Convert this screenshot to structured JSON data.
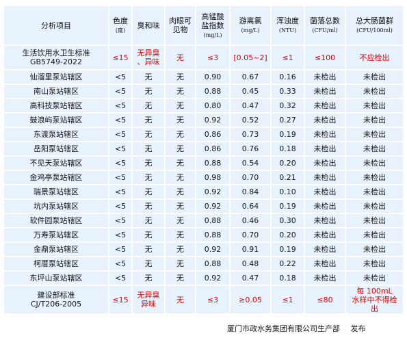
{
  "headers": [
    {
      "lines": [
        "分析项目"
      ]
    },
    {
      "lines": [
        "色度"
      ],
      "sub": "(度)"
    },
    {
      "lines": [
        "臭和味"
      ]
    },
    {
      "lines": [
        "肉眼可",
        "见物"
      ]
    },
    {
      "lines": [
        "高锰酸",
        "盐指数"
      ],
      "sub": "(mg/L)"
    },
    {
      "lines": [
        "游离氯"
      ],
      "sub": "(mg/L)"
    },
    {
      "lines": [
        "浑浊度"
      ],
      "sub": "(NTU)"
    },
    {
      "lines": [
        "菌落总数"
      ],
      "sub": "(CFU/ml)"
    },
    {
      "lines": [
        "总大肠菌群"
      ],
      "sub": "(CFU/100ml)"
    }
  ],
  "standard": {
    "name_lines": [
      "生活饮用水卫生标准",
      "GB5749-2022"
    ],
    "values": [
      [
        "≤15"
      ],
      [
        "无异臭",
        "、异味"
      ],
      [
        "无"
      ],
      [
        "≤3"
      ],
      [
        "[0.05~2]"
      ],
      [
        "≤1"
      ],
      [
        "≤100"
      ],
      [
        "不应检出"
      ]
    ]
  },
  "rows": [
    {
      "name": "仙溜里泵站辖区",
      "values": [
        "<5",
        "无",
        "无",
        "0.90",
        "0.67",
        "0.16",
        "未检出",
        "未检出"
      ]
    },
    {
      "name": "南山泵站辖区",
      "values": [
        "<5",
        "无",
        "无",
        "0.88",
        "0.45",
        "0.33",
        "未检出",
        "未检出"
      ]
    },
    {
      "name": "高科技泵站辖区",
      "values": [
        "<5",
        "无",
        "无",
        "0.80",
        "0.47",
        "0.32",
        "未检出",
        "未检出"
      ]
    },
    {
      "name": "鼓浪屿泵站辖区",
      "values": [
        "<5",
        "无",
        "无",
        "0.92",
        "0.52",
        "0.27",
        "未检出",
        "未检出"
      ]
    },
    {
      "name": "东渡泵站辖区",
      "values": [
        "<5",
        "无",
        "无",
        "0.86",
        "0.73",
        "0.19",
        "未检出",
        "未检出"
      ]
    },
    {
      "name": "岳阳泵站辖区",
      "values": [
        "<5",
        "无",
        "无",
        "0.86",
        "0.76",
        "0.18",
        "未检出",
        "未检出"
      ]
    },
    {
      "name": "不见天泵站辖区",
      "values": [
        "<5",
        "无",
        "无",
        "0.88",
        "0.54",
        "0.20",
        "未检出",
        "未检出"
      ]
    },
    {
      "name": "金鸡亭泵站辖区",
      "values": [
        "<5",
        "无",
        "无",
        "0.98",
        "0.70",
        "0.21",
        "未检出",
        "未检出"
      ]
    },
    {
      "name": "瑞景泵站辖区",
      "values": [
        "<5",
        "无",
        "无",
        "0.92",
        "0.84",
        "0.10",
        "未检出",
        "未检出"
      ]
    },
    {
      "name": "坑内泵站辖区",
      "values": [
        "<5",
        "无",
        "无",
        "0.92",
        "0.64",
        "0.19",
        "未检出",
        "未检出"
      ]
    },
    {
      "name": "软件园泵站辖区",
      "values": [
        "<5",
        "无",
        "无",
        "0.88",
        "0.46",
        "0.30",
        "未检出",
        "未检出"
      ]
    },
    {
      "name": "万寿泵站辖区",
      "values": [
        "<5",
        "无",
        "无",
        "0.88",
        "0.70",
        "0.20",
        "未检出",
        "未检出"
      ]
    },
    {
      "name": "金鼎泵站辖区",
      "values": [
        "<5",
        "无",
        "无",
        "0.92",
        "0.91",
        "0.19",
        "未检出",
        "未检出"
      ]
    },
    {
      "name": "柯厝泵站辖区",
      "values": [
        "<5",
        "无",
        "无",
        "0.88",
        "0.48",
        "0.22",
        "未检出",
        "未检出"
      ]
    },
    {
      "name": "东坪山泵站辖区",
      "values": [
        "<5",
        "无",
        "无",
        "0.92",
        "0.47",
        "0.18",
        "未检出",
        "未检出"
      ]
    }
  ],
  "spec": {
    "name_lines": [
      "建设部标准",
      "CJ/T206-2005"
    ],
    "values": [
      [
        "≤15"
      ],
      [
        "无异臭",
        "异味"
      ],
      [
        "无"
      ],
      [
        "≤3"
      ],
      [
        "≥0.05"
      ],
      [
        "≤1"
      ],
      [
        "≤80"
      ],
      [
        "每 100mL",
        "水样中不得检",
        "出"
      ]
    ]
  },
  "footer": {
    "publisher": "厦门市政水务集团有限公司生产部",
    "action": "发布"
  }
}
